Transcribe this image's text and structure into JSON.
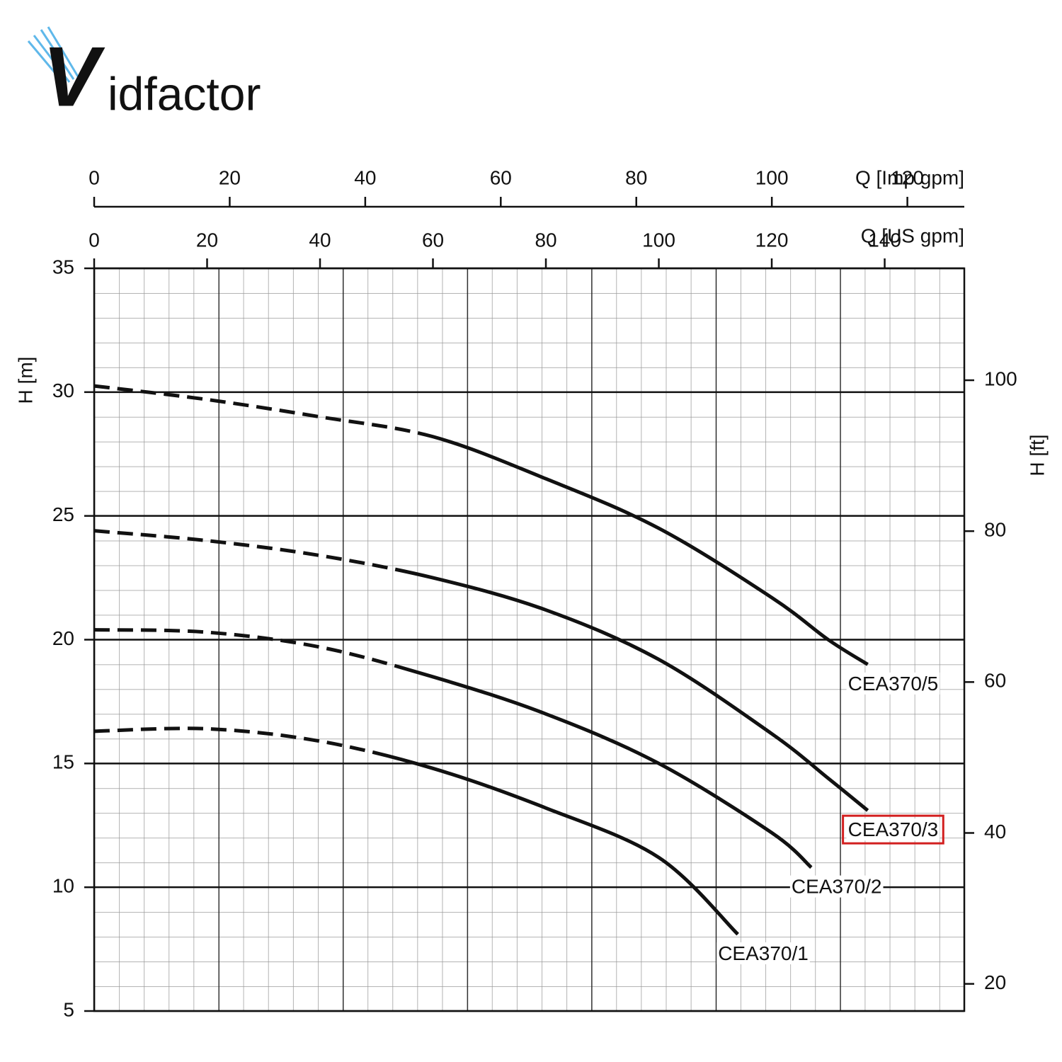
{
  "logo": {
    "initial": "V",
    "rest": "idfactor"
  },
  "chart_data": {
    "type": "line",
    "xlabel": "Q [US gpm]",
    "x2label": "Q [Imp gpm]",
    "ylabel": "H [m]",
    "y2label": "H [ft]",
    "xlim": [
      0,
      154.1
    ],
    "xticks": [
      0,
      20,
      40,
      60,
      80,
      100,
      120,
      140
    ],
    "x2lim": [
      0,
      128.4
    ],
    "x2ticks": [
      0,
      20,
      40,
      60,
      80,
      100,
      120
    ],
    "ylim": [
      5,
      35
    ],
    "yticks": [
      5,
      10,
      15,
      20,
      25,
      30,
      35
    ],
    "y2lim": [
      16.4,
      114.83
    ],
    "y2ticks": [
      20,
      40,
      60,
      80,
      100
    ],
    "grid": true,
    "series": [
      {
        "name": "CEA370/5",
        "color": "#111111",
        "dashed_below_x": 57,
        "x": [
          0,
          20,
          40,
          60,
          80,
          100,
          120,
          130,
          137
        ],
        "values": [
          30.25,
          29.7,
          29.0,
          28.2,
          26.5,
          24.5,
          21.7,
          20.0,
          19.0
        ]
      },
      {
        "name": "CEA370/3",
        "color": "#111111",
        "dashed_below_x": 52,
        "highlighted": true,
        "x": [
          0,
          20,
          40,
          60,
          80,
          100,
          120,
          130,
          137
        ],
        "values": [
          24.4,
          24.0,
          23.4,
          22.5,
          21.2,
          19.2,
          16.2,
          14.4,
          13.1
        ]
      },
      {
        "name": "CEA370/2",
        "color": "#111111",
        "dashed_below_x": 52,
        "x": [
          0,
          20,
          40,
          60,
          80,
          100,
          120,
          127
        ],
        "values": [
          20.4,
          20.3,
          19.7,
          18.5,
          17.0,
          15.0,
          12.2,
          10.8
        ]
      },
      {
        "name": "CEA370/1",
        "color": "#111111",
        "dashed_below_x": 46,
        "x": [
          0,
          20,
          40,
          60,
          80,
          100,
          114
        ],
        "values": [
          16.3,
          16.4,
          15.9,
          14.8,
          13.2,
          11.2,
          8.1
        ]
      }
    ]
  }
}
